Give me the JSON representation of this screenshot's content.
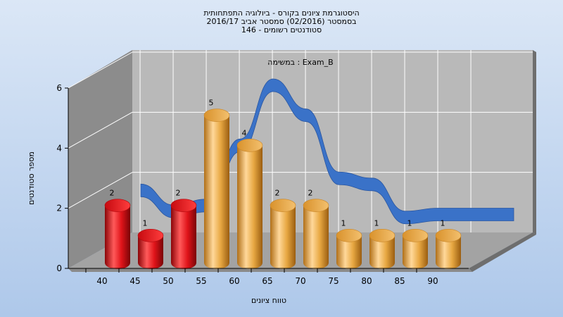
{
  "title": {
    "line1": "היסטוגרמת ציונים בקורס - ביולוגיה התפתחותית",
    "line2": "בסמסטר  (02/2016)  סמסטר אביב 2016/17",
    "line3": "סטודנטים רשומים - 146"
  },
  "colors": {
    "background_top": "#dbe7f6",
    "background_bottom": "#aec8ea",
    "plot_back": "#b9b9b9",
    "plot_side": "#8c8c8c",
    "plot_floor": "#a3a3a3",
    "bar_red": "#e0141a",
    "bar_orange": "#e8a843",
    "curve": "#3a72c8"
  },
  "chart_data": {
    "type": "bar",
    "annotation": "במשימה : Exam_B",
    "xlabel": "טווח ציונים",
    "ylabel": "מספר סטודנטים",
    "x_ticks": [
      "40",
      "45",
      "50",
      "55",
      "60",
      "65",
      "70",
      "75",
      "80",
      "85",
      "90"
    ],
    "y_ticks": [
      "0",
      "2",
      "4",
      "6"
    ],
    "ylim": [
      0,
      6
    ],
    "grid": true,
    "bars": [
      {
        "value": 2,
        "label": "2",
        "color": "red"
      },
      {
        "value": 1,
        "label": "1",
        "color": "red"
      },
      {
        "value": 2,
        "label": "2",
        "color": "red"
      },
      {
        "value": 5,
        "label": "5",
        "color": "orange"
      },
      {
        "value": 4,
        "label": "4",
        "color": "orange"
      },
      {
        "value": 2,
        "label": "2",
        "color": "orange"
      },
      {
        "value": 2,
        "label": "2",
        "color": "orange"
      },
      {
        "value": 1,
        "label": "1",
        "color": "orange"
      },
      {
        "value": 1,
        "label": "1",
        "color": "orange"
      },
      {
        "value": 1,
        "label": "1",
        "color": "orange"
      },
      {
        "value": 1,
        "label": "1",
        "color": "orange"
      }
    ],
    "curve_values": [
      2.5,
      1.8,
      2.0,
      4.0,
      6.0,
      5.0,
      2.9,
      2.7,
      1.6,
      1.7,
      1.7
    ]
  }
}
